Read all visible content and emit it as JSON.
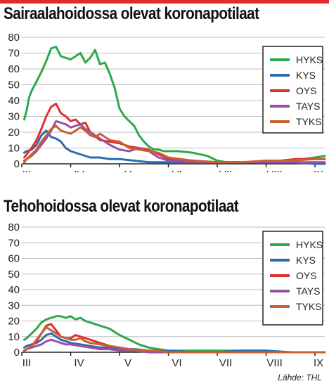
{
  "colors": {
    "accent_bar": "#e32b2b",
    "grid": "#bdbdbd",
    "axis": "#222222",
    "series": {
      "HYKS": "#2ea84a",
      "KYS": "#2a6bb0",
      "OYS": "#e03030",
      "TAYS": "#9b4fa8",
      "TYKS": "#c8612d"
    }
  },
  "source": "Lähde: THL",
  "chart_data": [
    {
      "type": "line",
      "title": "Sairaalahoidossa olevat koronapotilaat",
      "xlabel": "",
      "ylabel": "",
      "x_unit": "month",
      "xlim": [
        3,
        9.2
      ],
      "ylim": [
        0,
        80
      ],
      "yticks": [
        0,
        10,
        20,
        30,
        40,
        50,
        60,
        70,
        80
      ],
      "xticks": [
        {
          "value": 3,
          "label": "III"
        },
        {
          "value": 4,
          "label": "IV"
        },
        {
          "value": 5,
          "label": "V"
        },
        {
          "value": 6,
          "label": "VI"
        },
        {
          "value": 7,
          "label": "VII"
        },
        {
          "value": 8,
          "label": "VIII"
        },
        {
          "value": 9,
          "label": "IX"
        }
      ],
      "grid": true,
      "legend": "top-right",
      "series": [
        {
          "name": "HYKS",
          "x": [
            3.05,
            3.1,
            3.15,
            3.2,
            3.3,
            3.4,
            3.5,
            3.6,
            3.7,
            3.8,
            3.9,
            4.0,
            4.1,
            4.2,
            4.3,
            4.4,
            4.5,
            4.6,
            4.7,
            4.8,
            4.9,
            5.0,
            5.1,
            5.2,
            5.3,
            5.4,
            5.5,
            5.6,
            5.7,
            5.8,
            5.9,
            6.0,
            6.2,
            6.5,
            6.8,
            7.0,
            7.2,
            7.5,
            8.0,
            8.5,
            9.0,
            9.2
          ],
          "y": [
            28,
            34,
            42,
            46,
            52,
            58,
            65,
            73,
            74,
            68,
            67,
            66,
            68,
            70,
            64,
            67,
            72,
            63,
            64,
            57,
            48,
            35,
            30,
            27,
            24,
            18,
            14,
            11,
            9,
            9,
            8,
            8,
            8,
            7,
            5,
            2,
            1,
            1,
            1,
            2,
            4,
            5
          ]
        },
        {
          "name": "KYS",
          "x": [
            3.05,
            3.1,
            3.2,
            3.3,
            3.4,
            3.5,
            3.6,
            3.7,
            3.8,
            3.9,
            4.0,
            4.2,
            4.4,
            4.6,
            4.8,
            5.0,
            5.3,
            5.6,
            6.0,
            6.5,
            7.0,
            7.5,
            8.0,
            8.5,
            9.0,
            9.2
          ],
          "y": [
            7,
            8,
            9,
            12,
            18,
            21,
            17,
            16,
            14,
            10,
            8,
            6,
            4,
            4,
            3,
            3,
            2,
            1,
            1,
            1,
            1,
            1,
            1,
            1,
            0,
            0
          ]
        },
        {
          "name": "OYS",
          "x": [
            3.05,
            3.1,
            3.2,
            3.3,
            3.4,
            3.5,
            3.6,
            3.7,
            3.8,
            3.9,
            4.0,
            4.1,
            4.2,
            4.3,
            4.4,
            4.6,
            4.8,
            5.0,
            5.2,
            5.4,
            5.6,
            5.8,
            6.0,
            6.5,
            7.0,
            7.5,
            8.0,
            8.3,
            8.6,
            9.0,
            9.2
          ],
          "y": [
            4,
            6,
            10,
            15,
            22,
            30,
            36,
            38,
            32,
            30,
            27,
            28,
            25,
            26,
            20,
            15,
            14,
            13,
            11,
            10,
            9,
            6,
            3,
            2,
            1,
            1,
            1,
            2,
            3,
            3,
            3
          ]
        },
        {
          "name": "TAYS",
          "x": [
            3.05,
            3.1,
            3.2,
            3.3,
            3.4,
            3.5,
            3.6,
            3.7,
            3.8,
            3.9,
            4.0,
            4.1,
            4.2,
            4.3,
            4.4,
            4.6,
            4.8,
            5.0,
            5.2,
            5.4,
            5.6,
            5.8,
            6.0,
            6.5,
            7.0,
            7.5,
            8.0,
            8.5,
            9.0,
            9.2
          ],
          "y": [
            2,
            3,
            5,
            8,
            12,
            16,
            21,
            27,
            26,
            25,
            23,
            24,
            25,
            22,
            20,
            16,
            12,
            9,
            8,
            10,
            8,
            4,
            2,
            1,
            1,
            1,
            1,
            1,
            1,
            1
          ]
        },
        {
          "name": "TYKS",
          "x": [
            3.05,
            3.1,
            3.2,
            3.3,
            3.4,
            3.5,
            3.6,
            3.7,
            3.8,
            3.9,
            4.0,
            4.1,
            4.2,
            4.3,
            4.4,
            4.5,
            4.6,
            4.8,
            5.0,
            5.2,
            5.4,
            5.6,
            5.8,
            6.0,
            6.5,
            7.0,
            7.5,
            8.0,
            8.5,
            9.0,
            9.2
          ],
          "y": [
            1,
            3,
            6,
            9,
            14,
            18,
            22,
            24,
            21,
            20,
            19,
            21,
            23,
            21,
            18,
            17,
            19,
            15,
            14,
            10,
            9,
            8,
            7,
            4,
            2,
            1,
            1,
            2,
            2,
            3,
            3
          ]
        }
      ]
    },
    {
      "type": "line",
      "title": "Tehohoidossa olevat koronapotilaat",
      "xlabel": "",
      "ylabel": "",
      "x_unit": "month",
      "xlim": [
        3,
        9.2
      ],
      "ylim": [
        0,
        80
      ],
      "yticks": [
        0,
        10,
        20,
        30,
        40,
        50,
        60,
        70,
        80
      ],
      "xticks": [
        {
          "value": 3,
          "label": "III"
        },
        {
          "value": 4,
          "label": "IV"
        },
        {
          "value": 5,
          "label": "V"
        },
        {
          "value": 6,
          "label": "VI"
        },
        {
          "value": 7,
          "label": "VII"
        },
        {
          "value": 8,
          "label": "VIII"
        },
        {
          "value": 9,
          "label": "IX"
        }
      ],
      "grid": true,
      "legend": "top-right",
      "series": [
        {
          "name": "HYKS",
          "x": [
            3.05,
            3.1,
            3.2,
            3.3,
            3.4,
            3.5,
            3.6,
            3.7,
            3.8,
            3.9,
            4.0,
            4.1,
            4.2,
            4.3,
            4.4,
            4.6,
            4.8,
            5.0,
            5.2,
            5.4,
            5.6,
            5.8,
            6.0,
            6.3,
            6.6,
            7.0,
            7.5,
            8.0,
            8.5,
            9.0,
            9.2
          ],
          "y": [
            8,
            9,
            12,
            15,
            19,
            21,
            22,
            23,
            23,
            22,
            23,
            21,
            22,
            20,
            19,
            17,
            15,
            11,
            8,
            5,
            3,
            2,
            1,
            1,
            1,
            1,
            1,
            1,
            0,
            0,
            0
          ]
        },
        {
          "name": "KYS",
          "x": [
            3.05,
            3.1,
            3.2,
            3.3,
            3.4,
            3.5,
            3.6,
            3.7,
            3.8,
            3.9,
            4.0,
            4.2,
            4.4,
            4.6,
            4.8,
            5.0,
            5.3,
            5.6,
            6.0,
            6.5,
            7.0,
            7.5,
            8.0,
            8.5,
            9.0,
            9.2
          ],
          "y": [
            3,
            4,
            5,
            6,
            8,
            11,
            12,
            10,
            8,
            7,
            6,
            5,
            4,
            3,
            3,
            2,
            2,
            1,
            1,
            0,
            0,
            1,
            1,
            0,
            0,
            0
          ]
        },
        {
          "name": "OYS",
          "x": [
            3.05,
            3.1,
            3.2,
            3.3,
            3.4,
            3.5,
            3.6,
            3.7,
            3.8,
            3.9,
            4.0,
            4.1,
            4.2,
            4.3,
            4.4,
            4.6,
            4.8,
            5.0,
            5.2,
            5.3
          ],
          "y": [
            1,
            2,
            4,
            7,
            12,
            17,
            18,
            14,
            10,
            9,
            9,
            11,
            10,
            9,
            8,
            6,
            4,
            3,
            2,
            1
          ]
        },
        {
          "name": "TAYS",
          "x": [
            3.05,
            3.1,
            3.2,
            3.3,
            3.4,
            3.5,
            3.6,
            3.7,
            3.8,
            3.9,
            4.0,
            4.2,
            4.4,
            4.6,
            4.8,
            5.0,
            5.3,
            5.6,
            6.0,
            6.5,
            7.0,
            7.5,
            8.0,
            8.5,
            9.0,
            9.2
          ],
          "y": [
            1,
            2,
            3,
            4,
            5,
            7,
            8,
            7,
            6,
            5,
            5,
            4,
            3,
            2,
            2,
            1,
            1,
            0,
            0,
            0,
            0,
            0,
            0,
            0,
            0,
            0
          ]
        },
        {
          "name": "TYKS",
          "x": [
            3.05,
            3.1,
            3.2,
            3.3,
            3.4,
            3.5,
            3.6,
            3.7,
            3.8,
            3.9,
            4.0,
            4.1,
            4.2,
            4.3,
            4.4,
            4.6,
            4.8,
            5.0,
            5.2,
            5.4,
            5.6,
            5.8,
            6.0,
            6.5,
            7.0,
            7.5,
            8.0,
            8.5,
            9.0,
            9.2
          ],
          "y": [
            1,
            2,
            4,
            8,
            12,
            16,
            14,
            12,
            10,
            9,
            8,
            8,
            9,
            7,
            6,
            5,
            4,
            3,
            2,
            1,
            1,
            1,
            0,
            0,
            0,
            0,
            0,
            0,
            0,
            0
          ]
        }
      ]
    }
  ]
}
